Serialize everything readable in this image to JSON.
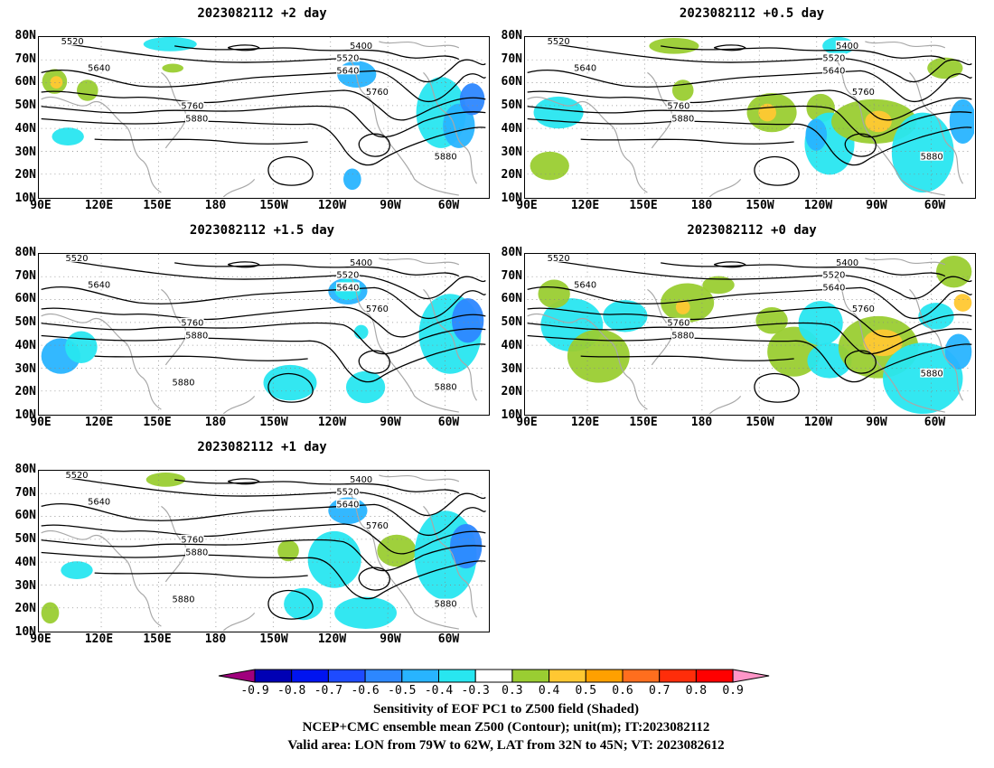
{
  "panels": [
    {
      "id": "p1",
      "title": "2023082112 +2 day"
    },
    {
      "id": "p2",
      "title": "2023082112 +0.5 day"
    },
    {
      "id": "p3",
      "title": "2023082112 +1.5 day"
    },
    {
      "id": "p4",
      "title": "2023082112 +0 day"
    },
    {
      "id": "p5",
      "title": "2023082112 +1 day"
    }
  ],
  "axes": {
    "lat_labels": [
      "80N",
      "70N",
      "60N",
      "50N",
      "40N",
      "30N",
      "20N",
      "10N"
    ],
    "lon_labels": [
      "90E",
      "120E",
      "150E",
      "180",
      "150W",
      "120W",
      "90W",
      "60W"
    ]
  },
  "contour_labels": [
    "5400",
    "5520",
    "5640",
    "5760",
    "5880"
  ],
  "colorbar": {
    "ticks": [
      "-0.9",
      "-0.8",
      "-0.7",
      "-0.6",
      "-0.5",
      "-0.4",
      "-0.3",
      "0.3",
      "0.4",
      "0.5",
      "0.6",
      "0.7",
      "0.8",
      "0.9"
    ],
    "colors": [
      "#a0007d",
      "#0000b4",
      "#0014f0",
      "#1e4bff",
      "#2d87ff",
      "#28b4ff",
      "#28e6f0",
      "#ffffff",
      "#9acd32",
      "#ffc832",
      "#ffa000",
      "#ff6e1e",
      "#ff2d0a",
      "#ff0000",
      "#ff96c8"
    ]
  },
  "captions": {
    "line1": "Sensitivity of EOF PC1 to Z500 field (Shaded)",
    "line2": "NCEP+CMC ensemble mean Z500 (Contour); unit(m); IT:2023082112",
    "line3": "Valid area: LON from 79W to 62W, LAT from 32N to 45N; VT: 2023082612"
  }
}
